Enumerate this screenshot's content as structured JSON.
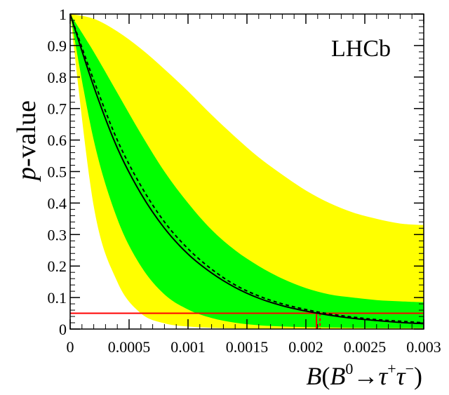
{
  "chart_data": {
    "type": "line",
    "title": "",
    "annotation": "LHCb",
    "ylabel_italic": "p",
    "ylabel_rest": "-value",
    "xlabel": {
      "b": "B",
      "open": "(",
      "meson": "B",
      "meson_sup": "0",
      "arrow": "→",
      "tau1": "τ",
      "tau1_sup": "+",
      "tau2": "τ",
      "tau2_sup": "−",
      "close": ")"
    },
    "xlim": [
      0,
      0.003
    ],
    "ylim": [
      0,
      1
    ],
    "x_ticks": [
      "0",
      "0.0005",
      "0.001",
      "0.0015",
      "0.002",
      "0.0025",
      "0.003"
    ],
    "y_ticks": [
      "0",
      "0.1",
      "0.2",
      "0.3",
      "0.4",
      "0.5",
      "0.6",
      "0.7",
      "0.8",
      "0.9",
      "1"
    ],
    "x": [
      0,
      0.0002,
      0.0004,
      0.0006,
      0.0008,
      0.001,
      0.0012,
      0.0014,
      0.0016,
      0.0018,
      0.002,
      0.0022,
      0.0024,
      0.0026,
      0.0028,
      0.003
    ],
    "series": [
      {
        "role": "band_2sigma_upper",
        "values": [
          1.0,
          0.985,
          0.945,
          0.89,
          0.825,
          0.755,
          0.68,
          0.61,
          0.545,
          0.49,
          0.44,
          0.4,
          0.37,
          0.35,
          0.335,
          0.33
        ]
      },
      {
        "role": "band_1sigma_upper",
        "values": [
          1.0,
          0.88,
          0.75,
          0.62,
          0.5,
          0.4,
          0.315,
          0.25,
          0.2,
          0.16,
          0.13,
          0.11,
          0.1,
          0.092,
          0.088,
          0.085
        ]
      },
      {
        "role": "expected_median",
        "values": [
          1.0,
          0.79,
          0.6,
          0.455,
          0.34,
          0.255,
          0.19,
          0.14,
          0.105,
          0.08,
          0.062,
          0.048,
          0.038,
          0.03,
          0.025,
          0.02
        ]
      },
      {
        "role": "observed",
        "values": [
          1.0,
          0.77,
          0.575,
          0.43,
          0.32,
          0.238,
          0.178,
          0.132,
          0.098,
          0.074,
          0.057,
          0.044,
          0.034,
          0.027,
          0.021,
          0.017
        ]
      },
      {
        "role": "band_1sigma_lower",
        "values": [
          1.0,
          0.6,
          0.35,
          0.2,
          0.11,
          0.062,
          0.035,
          0.02,
          0.012,
          0.008,
          0.006,
          0.005,
          0.004,
          0.003,
          0.003,
          0.003
        ]
      },
      {
        "role": "band_2sigma_lower",
        "values": [
          1.0,
          0.39,
          0.15,
          0.05,
          0.018,
          0.008,
          0.004,
          0.002,
          0.001,
          0.0005,
          0.0003,
          0.0002,
          0.0001,
          0.0001,
          0.0001,
          0.0001
        ]
      }
    ],
    "threshold_y": 0.05,
    "limit_observed_x": 0.00209,
    "limit_expected_x": 0.00212,
    "colors": {
      "band_2sigma": "#ffff00",
      "band_1sigma": "#00ff00",
      "observed": "#000000",
      "expected": "#000000",
      "threshold": "#ff0000",
      "limit_marker": "#ff0000",
      "axis": "#000000"
    }
  }
}
